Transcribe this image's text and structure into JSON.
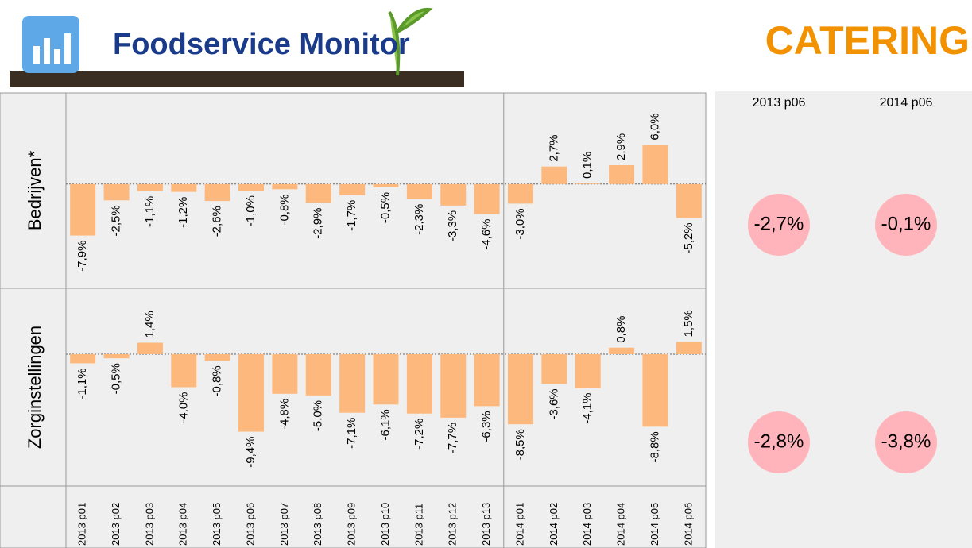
{
  "header": {
    "logo": "Foodservice Monitor",
    "title": "CATERING"
  },
  "chart_data": {
    "type": "bar",
    "color": "#fdb97d",
    "categories": [
      "2013 p01",
      "2013 p02",
      "2013 p03",
      "2013 p04",
      "2013 p05",
      "2013 p06",
      "2013 p07",
      "2013 p08",
      "2013 p09",
      "2013 p10",
      "2013 p11",
      "2013 p12",
      "2013 p13",
      "2014 p01",
      "2014 p02",
      "2014 p03",
      "2014 p04",
      "2014 p05",
      "2014 p06"
    ],
    "panels": [
      {
        "name": "Bedrijven*",
        "ylim": [
          -16,
          14
        ],
        "values": [
          -7.9,
          -2.5,
          -1.1,
          -1.2,
          -2.6,
          -1.0,
          -0.8,
          -2.9,
          -1.7,
          -0.5,
          -2.3,
          -3.3,
          -4.6,
          -3.0,
          2.7,
          0.1,
          2.9,
          6.0,
          -5.2
        ],
        "value_labels": [
          "-7,9%",
          "-2,5%",
          "-1,1%",
          "-1,2%",
          "-2,6%",
          "-1,0%",
          "-0,8%",
          "-2,9%",
          "-1,7%",
          "-0,5%",
          "-2,3%",
          "-3,3%",
          "-4,6%",
          "-3,0%",
          "2,7%",
          "0,1%",
          "2,9%",
          "6,0%",
          "-5,2%"
        ]
      },
      {
        "name": "Zorginstellingen",
        "ylim": [
          -16,
          8
        ],
        "values": [
          -1.1,
          -0.5,
          1.4,
          -4.0,
          -0.8,
          -9.4,
          -4.8,
          -5.0,
          -7.1,
          -6.1,
          -7.2,
          -7.7,
          -6.3,
          -8.5,
          -3.6,
          -4.1,
          0.8,
          -8.8,
          1.5
        ],
        "value_labels": [
          "-1,1%",
          "-0,5%",
          "1,4%",
          "-4,0%",
          "-0,8%",
          "-9,4%",
          "-4,8%",
          "-5,0%",
          "-7,1%",
          "-6,1%",
          "-7,2%",
          "-7,7%",
          "-6,3%",
          "-8,5%",
          "-3,6%",
          "-4,1%",
          "0,8%",
          "-8,8%",
          "1,5%"
        ]
      }
    ],
    "summary": {
      "columns": [
        "2013 p06",
        "2014 p06"
      ],
      "color": "#ffb3ba",
      "rows": [
        {
          "values": [
            -2.7,
            -0.1
          ],
          "value_labels": [
            "-2,7%",
            "-0,1%"
          ]
        },
        {
          "values": [
            -2.8,
            -3.8
          ],
          "value_labels": [
            "-2,8%",
            "-3,8%"
          ]
        }
      ]
    }
  }
}
